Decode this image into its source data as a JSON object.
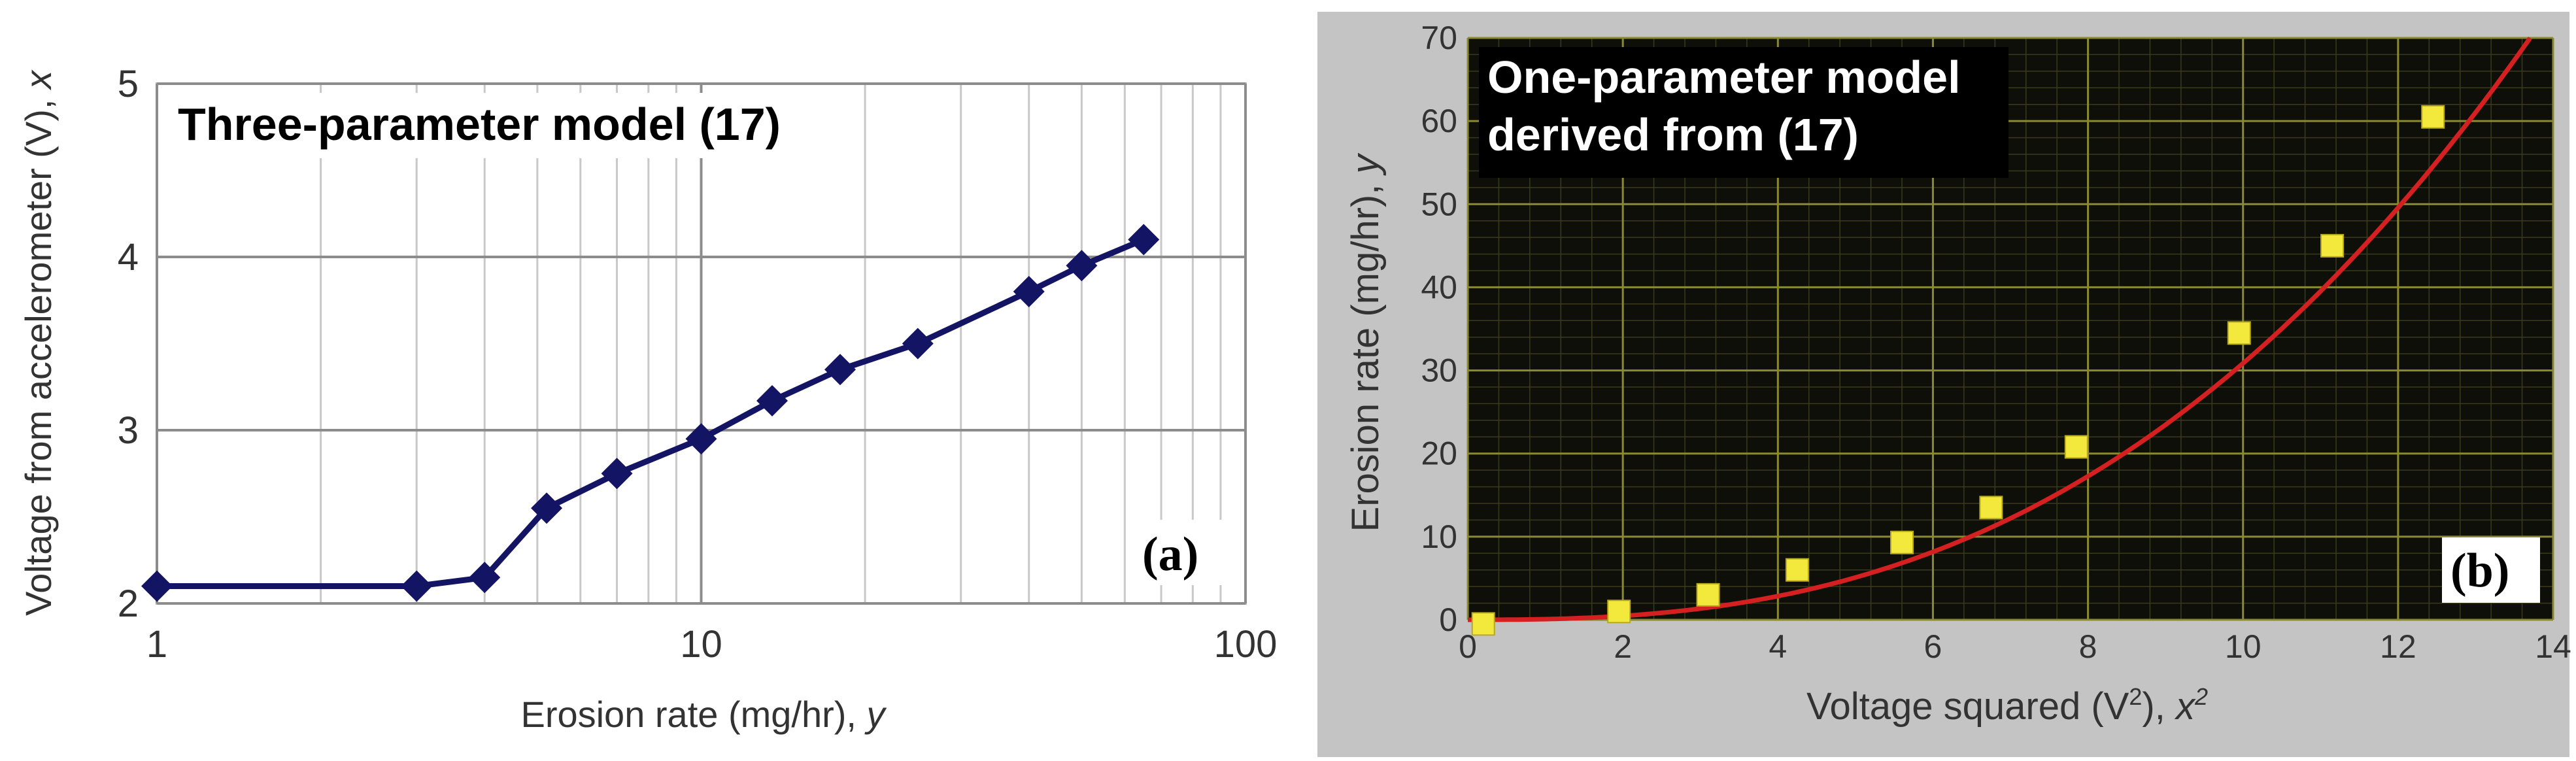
{
  "colors": {
    "panel_b_background": "#0f0f0a",
    "panel_b_frame": "#c4c4c4",
    "panel_b_grid": "#8a8a33",
    "panel_b_fit_curve": "#d42020",
    "panel_b_marker": "#f3e83c",
    "panel_a_series": "#141464"
  },
  "chart_data": [
    {
      "type": "line",
      "panel_label": "(a)",
      "title": "Three-parameter model (17)",
      "xlabel": "Erosion rate (mg/hr), ",
      "xlabel_var": "y",
      "ylabel": "Voltage from accelerometer (V), ",
      "ylabel_var": "x",
      "xscale": "log",
      "xlim": [
        1,
        100
      ],
      "ylim": [
        2,
        5
      ],
      "xticks": [
        1,
        10,
        100
      ],
      "yticks": [
        2,
        3,
        4,
        5
      ],
      "grid": true,
      "marker": "diamond",
      "x": [
        1,
        3,
        4,
        5.2,
        7,
        10,
        13.5,
        18,
        25,
        40,
        50,
        65
      ],
      "y": [
        2.1,
        2.1,
        2.15,
        2.55,
        2.75,
        2.95,
        3.17,
        3.35,
        3.5,
        3.8,
        3.95,
        4.1
      ]
    },
    {
      "type": "scatter",
      "panel_label": "(b)",
      "title_lines": [
        "One-parameter model",
        "derived from (17)"
      ],
      "xlabel": "Voltage squared (V",
      "xlabel_sup": "2",
      "xlabel_tail": "), ",
      "xlabel_var": "x",
      "xlabel_var_sup": "2",
      "ylabel": "Erosion rate (mg/hr), ",
      "ylabel_var": "y",
      "xlim": [
        0,
        14
      ],
      "ylim": [
        0,
        70
      ],
      "xticks": [
        0,
        2,
        4,
        6,
        8,
        10,
        12,
        14
      ],
      "yticks": [
        0,
        10,
        20,
        30,
        40,
        50,
        60,
        70
      ],
      "grid": true,
      "marker": "square",
      "x": [
        0.2,
        1.95,
        3.1,
        4.25,
        5.6,
        6.75,
        7.85,
        9.95,
        11.15,
        12.45
      ],
      "y": [
        -0.5,
        1,
        3,
        6,
        9.3,
        13.5,
        20.8,
        34.5,
        45,
        60.5
      ],
      "fit": {
        "type": "power",
        "coefficient": 0.0775,
        "exponent": 2.6
      }
    }
  ]
}
